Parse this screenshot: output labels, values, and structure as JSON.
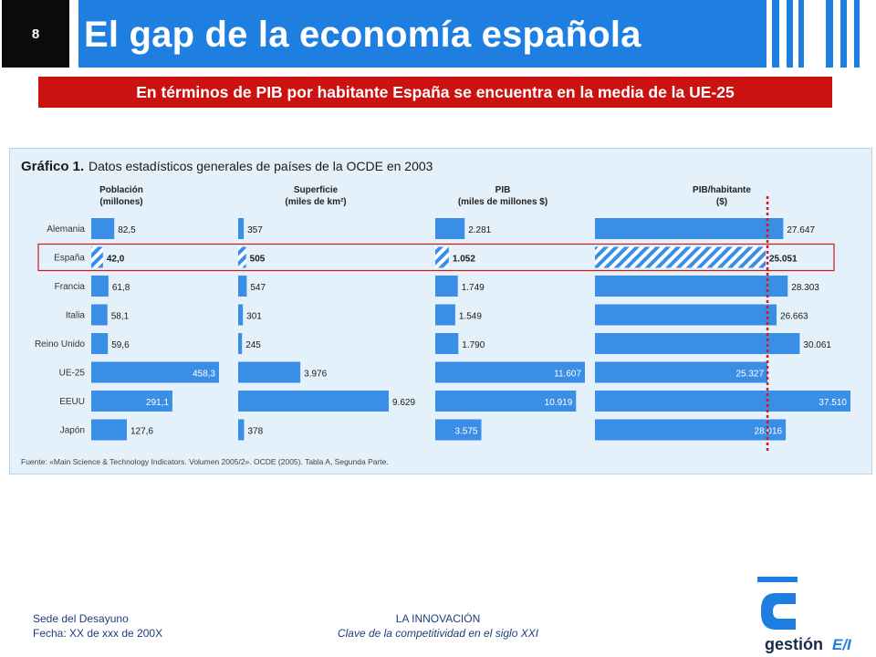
{
  "slide": {
    "number": "8",
    "title": "El gap de la economía española",
    "subtitle": "En términos de PIB por habitante España se encuentra en la media de la UE-25"
  },
  "chart_data": {
    "type": "bar",
    "title": "Gráfico 1.",
    "subtitle": "Datos estadísticos generales de países de la OCDE en 2003",
    "source": "Fuente: «Main Science & Technology Indicators. Volumen 2005/2». OCDE (2005). Tabla A, Segunda Parte.",
    "categories": [
      "Alemania",
      "España",
      "Francia",
      "Italia",
      "Reino Unido",
      "UE-25",
      "EEUU",
      "Japón"
    ],
    "highlight_category": "España",
    "series": [
      {
        "name": "Población\n(millones)",
        "values": [
          82.5,
          42.0,
          61.8,
          58.1,
          59.6,
          458.3,
          291.1,
          127.6
        ],
        "labels": [
          "82,5",
          "42,0",
          "61,8",
          "58,1",
          "59,6",
          "458,3",
          "291,1",
          "127,6"
        ]
      },
      {
        "name": "Superficie\n(miles de km²)",
        "values": [
          357,
          505,
          547,
          301,
          245,
          3976,
          9629,
          378
        ],
        "labels": [
          "357",
          "505",
          "547",
          "301",
          "245",
          "3.976",
          "9.629",
          "378"
        ]
      },
      {
        "name": "PIB\n(miles de millones $)",
        "values": [
          2281,
          1052,
          1749,
          1549,
          1790,
          11607,
          10919,
          3575
        ],
        "labels": [
          "2.281",
          "1.052",
          "1.749",
          "1.549",
          "1.790",
          "11.607",
          "10.919",
          "3.575"
        ]
      },
      {
        "name": "PIB/habitante\n($)",
        "values": [
          27647,
          25051,
          28303,
          26663,
          30061,
          25327,
          37510,
          28016
        ],
        "labels": [
          "27.647",
          "25.051",
          "28.303",
          "26.663",
          "30.061",
          "25.327",
          "37.510",
          "28.016"
        ]
      }
    ],
    "reference_line": {
      "series": "PIB/habitante\n($)",
      "value": 25327,
      "style": "dotted"
    },
    "colors": {
      "bar": "#3b8ee6",
      "background": "#e4f1fa",
      "highlight_box": "#d01818",
      "reference_line": "#d01818"
    }
  },
  "footer": {
    "venue": "Sede del Desayuno",
    "date": "Fecha: XX de xxx de 200X",
    "event_title": "LA INNOVACIÓN",
    "event_subtitle": "Clave de la competitividad en el siglo XXI"
  },
  "logo": {
    "text": "gestión",
    "mark": "E/I",
    "brand_color": "#1f7fe0"
  }
}
